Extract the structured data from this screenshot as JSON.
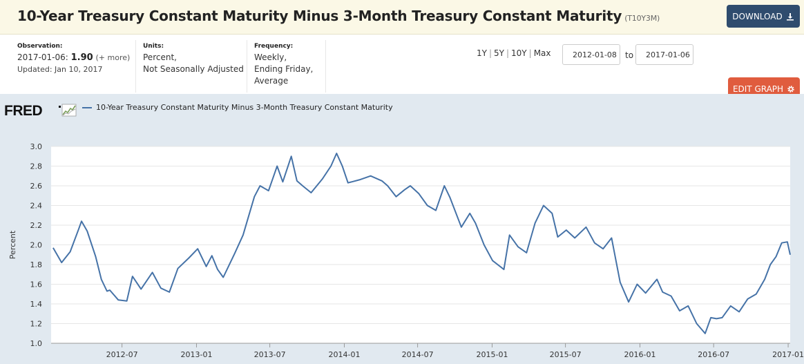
{
  "header": {
    "title": "10-Year Treasury Constant Maturity Minus 3-Month Treasury Constant Maturity",
    "series_id": "(T10Y3M)",
    "download_label": "DOWNLOAD",
    "download_icon": "download-icon"
  },
  "meta": {
    "observation_label": "Observation:",
    "observation_date": "2017-01-06:",
    "observation_value": "1.90",
    "observation_more": "(+ more)",
    "updated": "Updated: Jan 10, 2017",
    "units_label": "Units:",
    "units_line1": "Percent,",
    "units_line2": "Not Seasonally Adjusted",
    "frequency_label": "Frequency:",
    "frequency_line1": "Weekly,",
    "frequency_line2": "Ending Friday,",
    "frequency_line3": "Average"
  },
  "controls": {
    "range_links": [
      "1Y",
      "5Y",
      "10Y",
      "Max"
    ],
    "start_date": "2012-01-08",
    "to_label": "to",
    "end_date": "2017-01-06",
    "edit_label": "EDIT GRAPH",
    "edit_icon": "gear-icon"
  },
  "colors": {
    "series": "#4572a7",
    "plot_bg": "#ffffff",
    "chart_bg": "#e1e9f0",
    "grid": "#e6e6e6"
  },
  "chart_data": {
    "type": "line",
    "title": "",
    "legend_text": "10-Year Treasury Constant Maturity Minus 3-Month Treasury Constant Maturity",
    "brand": "FRED",
    "ylabel": "Percent",
    "xlabel": "",
    "ylim": [
      1.0,
      3.0
    ],
    "y_ticks": [
      "1.0",
      "1.2",
      "1.4",
      "1.6",
      "1.8",
      "2.0",
      "2.2",
      "2.4",
      "2.6",
      "2.8",
      "3.0"
    ],
    "x_range": [
      "2012-01-08",
      "2017-01-06"
    ],
    "x_ticks": [
      "2012-07",
      "2013-01",
      "2013-07",
      "2014-01",
      "2014-07",
      "2015-01",
      "2015-07",
      "2016-01",
      "2016-07",
      "2017-01"
    ],
    "grid": "horizontal",
    "legend_position": "top-left",
    "series": [
      {
        "name": "10-Year Treasury Constant Maturity Minus 3-Month Treasury Constant Maturity",
        "x": [
          "2012-01-13",
          "2012-02-03",
          "2012-02-24",
          "2012-03-16",
          "2012-03-23",
          "2012-04-06",
          "2012-04-27",
          "2012-05-11",
          "2012-05-25",
          "2012-06-01",
          "2012-06-22",
          "2012-07-13",
          "2012-07-27",
          "2012-08-17",
          "2012-09-14",
          "2012-10-05",
          "2012-10-26",
          "2012-11-16",
          "2012-12-14",
          "2013-01-04",
          "2013-01-25",
          "2013-02-08",
          "2013-02-22",
          "2013-03-08",
          "2013-04-05",
          "2013-04-26",
          "2013-05-24",
          "2013-06-07",
          "2013-06-28",
          "2013-07-19",
          "2013-08-02",
          "2013-08-23",
          "2013-09-06",
          "2013-09-20",
          "2013-10-11",
          "2013-11-08",
          "2013-11-29",
          "2013-12-13",
          "2013-12-27",
          "2014-01-10",
          "2014-02-07",
          "2014-03-07",
          "2014-04-04",
          "2014-04-18",
          "2014-05-09",
          "2014-05-30",
          "2014-06-13",
          "2014-07-04",
          "2014-07-25",
          "2014-08-15",
          "2014-09-05",
          "2014-09-19",
          "2014-10-17",
          "2014-11-07",
          "2014-11-21",
          "2014-12-12",
          "2015-01-02",
          "2015-01-30",
          "2015-02-13",
          "2015-03-06",
          "2015-03-27",
          "2015-04-17",
          "2015-05-08",
          "2015-05-29",
          "2015-06-12",
          "2015-07-03",
          "2015-07-24",
          "2015-08-21",
          "2015-09-11",
          "2015-10-02",
          "2015-10-23",
          "2015-11-13",
          "2015-12-04",
          "2015-12-25",
          "2016-01-15",
          "2016-02-12",
          "2016-02-26",
          "2016-03-18",
          "2016-04-08",
          "2016-04-29",
          "2016-05-20",
          "2016-06-10",
          "2016-06-24",
          "2016-07-08",
          "2016-07-22",
          "2016-08-12",
          "2016-09-02",
          "2016-09-23",
          "2016-10-14",
          "2016-11-04",
          "2016-11-18",
          "2016-12-02",
          "2016-12-16",
          "2016-12-30",
          "2017-01-06"
        ],
        "values": [
          1.97,
          1.82,
          1.93,
          2.16,
          2.24,
          2.14,
          1.88,
          1.65,
          1.53,
          1.54,
          1.44,
          1.43,
          1.68,
          1.55,
          1.72,
          1.56,
          1.52,
          1.76,
          1.87,
          1.96,
          1.78,
          1.89,
          1.75,
          1.67,
          1.91,
          2.1,
          2.49,
          2.6,
          2.55,
          2.8,
          2.64,
          2.9,
          2.65,
          2.6,
          2.53,
          2.67,
          2.8,
          2.93,
          2.8,
          2.63,
          2.66,
          2.7,
          2.65,
          2.6,
          2.49,
          2.56,
          2.6,
          2.52,
          2.4,
          2.35,
          2.6,
          2.48,
          2.18,
          2.32,
          2.22,
          2.0,
          1.84,
          1.75,
          2.1,
          1.98,
          1.92,
          2.22,
          2.4,
          2.32,
          2.08,
          2.15,
          2.07,
          2.18,
          2.02,
          1.96,
          2.07,
          1.62,
          1.42,
          1.6,
          1.51,
          1.65,
          1.52,
          1.48,
          1.33,
          1.38,
          1.2,
          1.1,
          1.26,
          1.25,
          1.26,
          1.38,
          1.32,
          1.45,
          1.5,
          1.65,
          1.8,
          1.88,
          2.02,
          2.03,
          1.9
        ]
      }
    ]
  }
}
